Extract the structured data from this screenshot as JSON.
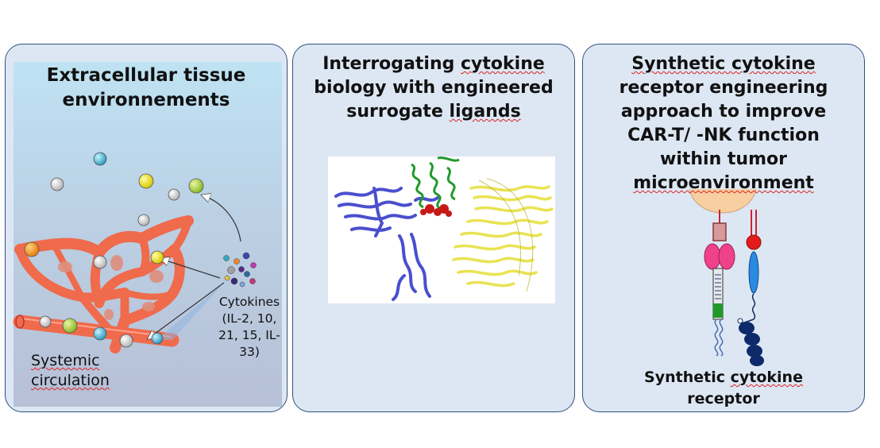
{
  "panels": {
    "tissue": {
      "title": "Extracellular tissue environnements",
      "systemic_label": "Systemic circulation",
      "cytokines_label": "Cytokines (IL-2, 10, 21, 15, IL-33)"
    },
    "surrogate": {
      "title_part1": "Interrogating ",
      "title_squiggle": "cytokine",
      "title_part2": " biology with engineered surrogate ",
      "title_squiggle2": "ligands"
    },
    "synthetic": {
      "title_squiggle1": "Synthetic cytokine",
      "title_part2": " receptor engineering approach to improve CAR-T/ -NK function within tumor ",
      "title_squiggle2": "microenvironment",
      "caption_part1": "Synthetic ",
      "caption_squiggle": "cytokine",
      "caption_part2": " receptor"
    }
  },
  "colors": {
    "panel_border": "#30507f",
    "panel_fill": "#dde7f3",
    "vessel": "#f06a4c",
    "ribbon_blue": "#4a4fcf",
    "ribbon_green": "#1f9a2a",
    "ribbon_yellow": "#e8e24a",
    "cell": "#f7cfa1"
  },
  "icons": [
    "blood-vessel-network-illustration",
    "cytokine-sphere-icon",
    "protein-structure-image",
    "synthetic-receptor-illustration"
  ]
}
